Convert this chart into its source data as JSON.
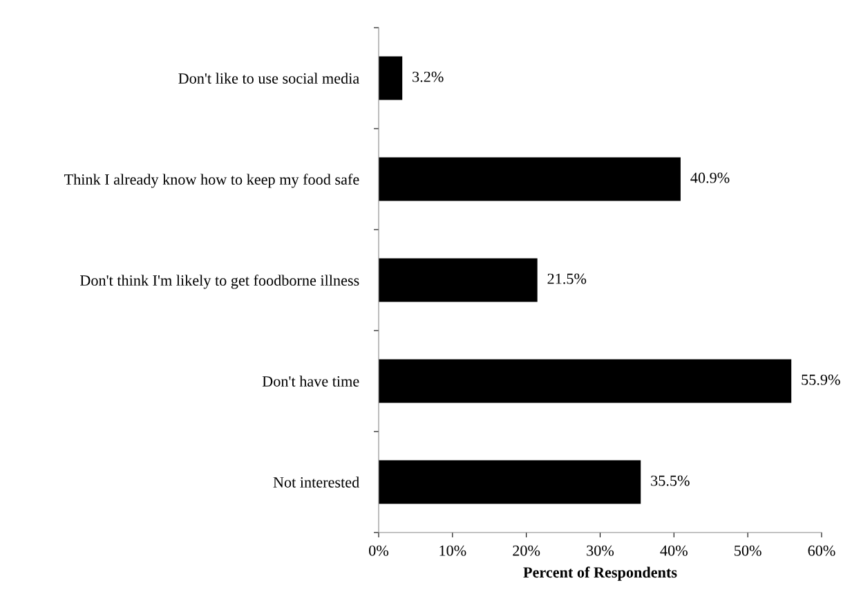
{
  "chart_data": {
    "type": "bar",
    "orientation": "horizontal",
    "xlabel": "Percent of Respondents",
    "categories": [
      "Don't like to use social media",
      "Think I already know how to keep my food safe",
      "Don't think I'm likely to get foodborne illness",
      "Don't have time",
      "Not interested"
    ],
    "values": [
      3.2,
      40.9,
      21.5,
      55.9,
      35.5
    ],
    "value_labels": [
      "3.2%",
      "40.9%",
      "21.5%",
      "55.9%",
      "35.5%"
    ],
    "color": "#000000",
    "xlim": [
      0,
      60
    ],
    "xticks": [
      {
        "value": 0,
        "label": "0%"
      },
      {
        "value": 10,
        "label": "10%"
      },
      {
        "value": 20,
        "label": "20%"
      },
      {
        "value": 30,
        "label": "30%"
      },
      {
        "value": 40,
        "label": "40%"
      },
      {
        "value": 50,
        "label": "50%"
      },
      {
        "value": 60,
        "label": "60%"
      }
    ],
    "grid": false,
    "legend": false
  }
}
